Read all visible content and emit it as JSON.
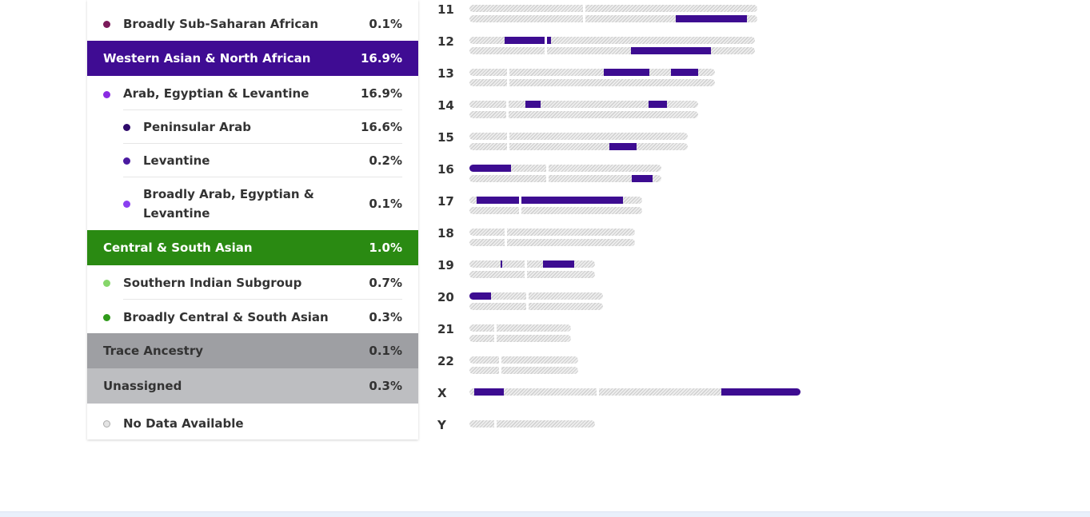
{
  "legend": {
    "ssa_broad": {
      "label": "Broadly Sub-Saharan African",
      "pct": "0.1%",
      "dot": "#7b1a5a"
    },
    "wana": {
      "label": "Western Asian & North African",
      "pct": "16.9%",
      "bg": "#3f0c93"
    },
    "arab_egy_lev": {
      "label": "Arab, Egyptian & Levantine",
      "pct": "16.9%",
      "dot": "#8a2be2"
    },
    "peninsular_arab": {
      "label": "Peninsular Arab",
      "pct": "16.6%",
      "dot": "#2e0a6b"
    },
    "levantine": {
      "label": "Levantine",
      "pct": "0.2%",
      "dot": "#4a1aa0"
    },
    "broad_arab": {
      "label_line1": "Broadly Arab, Egyptian &",
      "label_line2": "Levantine",
      "pct": "0.1%",
      "dot": "#8a3ff0"
    },
    "csa": {
      "label": "Central & South Asian",
      "pct": "1.0%",
      "bg": "#2a8a12"
    },
    "southern_indian": {
      "label": "Southern Indian Subgroup",
      "pct": "0.7%",
      "dot": "#86d66a"
    },
    "broad_csa": {
      "label": "Broadly Central & South Asian",
      "pct": "0.3%",
      "dot": "#2f9a1a"
    },
    "trace": {
      "label": "Trace Ancestry",
      "pct": "0.1%",
      "bg": "#9e9fa3"
    },
    "unassigned": {
      "label": "Unassigned",
      "pct": "0.3%",
      "bg": "#bdbec1"
    },
    "no_data": {
      "label": "No Data Available",
      "dot": "#cfcfcf"
    }
  },
  "chromosomes": [
    {
      "name": "11"
    },
    {
      "name": "12"
    },
    {
      "name": "13"
    },
    {
      "name": "14"
    },
    {
      "name": "15"
    },
    {
      "name": "16"
    },
    {
      "name": "17"
    },
    {
      "name": "18"
    },
    {
      "name": "19"
    },
    {
      "name": "20"
    },
    {
      "name": "21"
    },
    {
      "name": "22"
    },
    {
      "name": "X"
    },
    {
      "name": "Y"
    }
  ]
}
